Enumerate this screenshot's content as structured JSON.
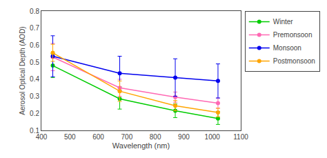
{
  "chart_data": {
    "type": "line",
    "x": [
      440,
      675,
      870,
      1020
    ],
    "series": [
      {
        "name": "Winter",
        "color": "#00cc00",
        "values": [
          0.48,
          0.285,
          0.215,
          0.17
        ],
        "error_up": [
          0.07,
          0.07,
          0.04,
          0.04
        ],
        "error_down": [
          0.07,
          0.06,
          0.04,
          0.035
        ]
      },
      {
        "name": "Premonsoon",
        "color": "#ff69b4",
        "values": [
          0.53,
          0.35,
          0.295,
          0.26
        ],
        "error_up": [
          0.08,
          0.05,
          0.03,
          0.03
        ],
        "error_down": [
          0.08,
          0.05,
          0.03,
          0.03
        ]
      },
      {
        "name": "Monsoon",
        "color": "#0000ee",
        "values": [
          0.535,
          0.435,
          0.41,
          0.39
        ],
        "error_up": [
          0.12,
          0.1,
          0.11,
          0.1
        ],
        "error_down": [
          0.12,
          0.1,
          0.11,
          0.1
        ]
      },
      {
        "name": "Postmonsoon",
        "color": "#ffa500",
        "values": [
          0.555,
          0.33,
          0.245,
          0.205
        ],
        "error_up": [
          0.05,
          0.06,
          0.03,
          0.025
        ],
        "error_down": [
          0.05,
          0.06,
          0.03,
          0.025
        ]
      }
    ],
    "xlabel": "Wavelength (nm)",
    "ylabel": "Aerosol Optical Depth (AOD)",
    "xlim": [
      400,
      1100
    ],
    "ylim": [
      0.1,
      0.8
    ],
    "xticks": [
      400,
      500,
      600,
      700,
      800,
      900,
      1000,
      1100
    ],
    "yticks": [
      0.1,
      0.2,
      0.3,
      0.4,
      0.5,
      0.6,
      0.7,
      0.8
    ],
    "marker": "circle",
    "line_style": "solid",
    "grid": false,
    "legend": "upper right"
  }
}
